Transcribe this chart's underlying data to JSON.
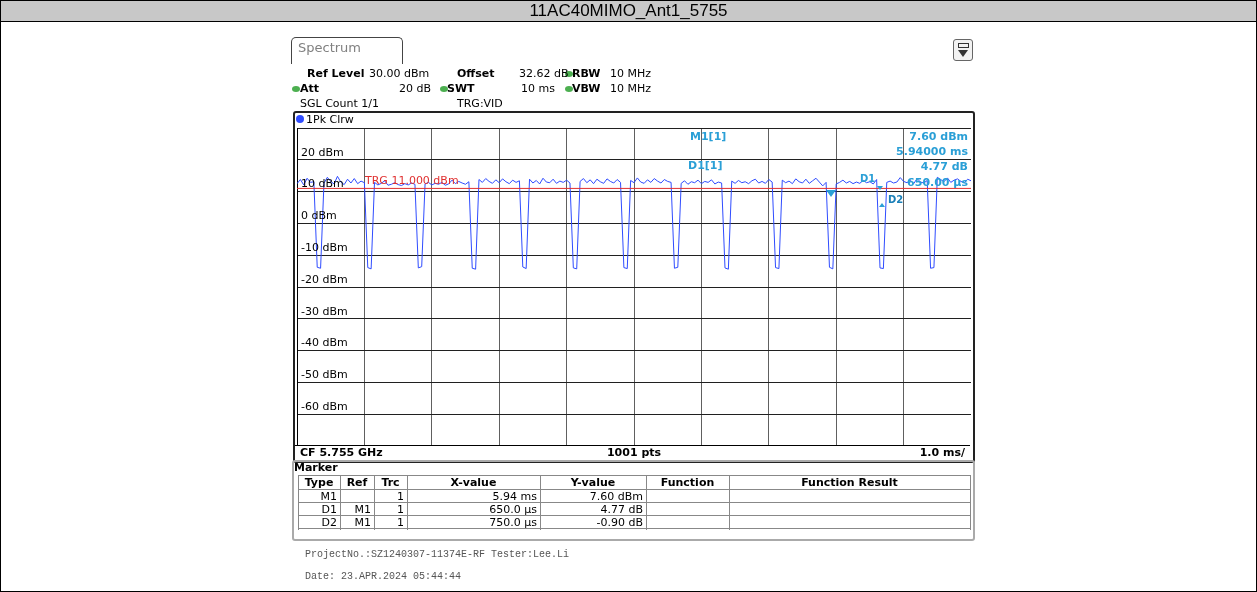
{
  "chart_data": {
    "type": "line",
    "title": "11AC40MIMO_Ant1_5755",
    "categories": [
      null,
      null,
      null,
      null,
      null,
      null,
      null,
      null,
      null,
      null,
      null,
      null,
      null,
      null,
      null,
      null,
      null,
      null,
      null,
      null,
      null,
      null,
      null,
      null,
      null,
      null,
      null,
      null,
      null,
      null,
      null,
      null,
      null,
      null,
      null,
      null,
      null,
      null,
      null,
      null,
      null,
      null,
      null,
      null,
      null,
      null,
      null,
      null,
      null,
      null,
      null,
      null,
      null,
      null,
      null,
      null,
      null,
      null,
      null,
      null,
      null,
      null,
      null,
      null,
      null,
      null,
      null,
      null,
      null,
      null,
      null,
      null,
      null,
      null,
      null,
      null,
      null,
      null,
      null,
      null,
      null,
      null,
      null,
      null,
      null,
      null,
      null,
      null,
      null,
      null,
      null,
      null,
      null,
      null,
      null,
      null,
      null,
      null,
      null,
      null,
      null,
      null,
      null,
      null,
      null,
      null,
      null,
      null,
      null,
      null,
      null,
      null,
      null,
      null,
      null,
      null,
      null,
      null,
      null,
      null,
      null,
      null,
      null,
      null,
      null,
      null,
      null,
      null,
      null,
      null,
      null,
      null,
      null,
      null,
      null,
      null,
      null,
      null,
      null,
      null,
      null,
      null,
      null,
      null,
      null,
      null,
      null,
      null,
      null,
      null,
      null,
      null,
      null,
      null,
      null,
      null,
      null,
      null,
      null,
      null,
      null,
      null,
      null,
      null,
      null,
      null,
      null,
      null,
      null,
      null,
      null,
      null,
      null,
      null,
      null,
      null,
      null,
      null,
      null,
      null,
      null,
      null,
      null,
      null,
      null,
      null,
      null,
      null,
      null,
      null,
      null,
      null,
      null,
      null,
      null,
      null,
      null,
      null,
      null,
      null,
      null
    ],
    "series": [
      {
        "name": "1Pk Clrw",
        "color": "#2f4cff",
        "values": [
          12.5,
          13.8,
          12.1,
          14.2,
          12.9,
          13.1,
          -13.8,
          -14.1,
          12.6,
          14.5,
          13.2,
          12.4,
          14.8,
          13.0,
          12.2,
          13.9,
          12.7,
          14.1,
          12.5,
          13.3,
          12.8,
          -13.9,
          -14.3,
          12.9,
          12.1,
          12.6,
          13.4,
          12.0,
          12.3,
          12.8,
          12.2,
          11.9,
          12.5,
          12.1,
          12.7,
          12.3,
          -14.0,
          -13.6,
          12.4,
          12.9,
          12.1,
          12.6,
          12.3,
          12.9,
          12.0,
          12.4,
          13.6,
          12.5,
          13.2,
          12.7,
          12.3,
          13.1,
          -14.1,
          -14.4,
          13.8,
          12.9,
          14.1,
          13.2,
          12.6,
          13.7,
          12.8,
          14.0,
          13.1,
          12.5,
          13.6,
          12.9,
          13.4,
          -13.7,
          -14.2,
          13.9,
          12.7,
          13.5,
          12.4,
          14.2,
          13.0,
          12.8,
          13.9,
          12.6,
          13.3,
          12.9,
          13.6,
          12.7,
          -14.0,
          -14.3,
          13.2,
          14.1,
          12.8,
          13.7,
          12.5,
          13.9,
          13.1,
          12.6,
          14.0,
          13.2,
          12.7,
          13.8,
          12.9,
          -13.9,
          -14.2,
          13.5,
          12.8,
          14.3,
          13.0,
          12.6,
          13.7,
          12.9,
          14.1,
          13.3,
          12.7,
          13.8,
          13.2,
          12.9,
          -14.1,
          -13.8,
          12.6,
          13.4,
          12.3,
          13.1,
          12.8,
          13.6,
          12.5,
          13.2,
          12.9,
          13.7,
          12.4,
          13.0,
          12.7,
          -14.0,
          -14.4,
          13.3,
          12.6,
          13.5,
          12.8,
          13.1,
          12.5,
          13.4,
          13.9,
          12.7,
          13.2,
          12.6,
          13.8,
          13.0,
          -13.9,
          -14.2,
          13.6,
          12.8,
          13.3,
          12.5,
          14.0,
          13.1,
          12.7,
          13.9,
          12.6,
          13.4,
          14.2,
          13.0,
          11.8,
          12.9,
          -13.8,
          -14.3,
          12.4,
          12.9,
          13.6,
          12.7,
          13.2,
          12.5,
          13.0,
          12.6,
          13.5,
          12.8,
          13.1,
          12.4,
          13.8,
          -14.0,
          -14.2,
          12.9,
          13.3,
          12.7,
          13.0,
          14.4,
          13.2,
          12.8,
          13.6,
          12.5,
          14.1,
          13.0,
          12.7,
          13.5,
          -14.1,
          -13.9,
          14.5,
          13.8,
          13.1,
          14.3,
          12.9,
          13.6,
          14.0,
          13.2,
          12.8,
          13.9,
          13.4
        ]
      }
    ],
    "ylim": [
      -70,
      30
    ],
    "yticks": [
      {
        "value": 30,
        "label": null
      },
      {
        "value": 20,
        "label": "20 dBm"
      },
      {
        "value": 10,
        "label": "10 dBm"
      },
      {
        "value": 0,
        "label": "0 dBm"
      },
      {
        "value": -10,
        "label": "-10 dBm"
      },
      {
        "value": -20,
        "label": "-20 dBm"
      },
      {
        "value": -30,
        "label": "-30 dBm"
      },
      {
        "value": -40,
        "label": "-40 dBm"
      },
      {
        "value": -50,
        "label": "-50 dBm"
      },
      {
        "value": -60,
        "label": "-60 dBm"
      },
      {
        "value": -70,
        "label": null
      }
    ],
    "grid": true,
    "legend": "top left",
    "marker": "none",
    "line_style": "solid",
    "ref_lines": [
      {
        "axis": "y",
        "value": 11,
        "label": "TRG 11.000 dBm",
        "color": "#e03030"
      }
    ],
    "annotations": [
      "Spectrum",
      "Ref Level",
      "30.00 dBm",
      "Offset",
      "32.62 dB",
      "RBW",
      "10 MHz",
      "Att",
      "20 dB",
      "SWT",
      "10 ms",
      "VBW",
      "10 MHz",
      "SGL Count 1/1",
      "TRG:VID",
      "M1[1]",
      "7.60 dBm",
      "5.94000 ms",
      "D1[1]",
      "4.77 dB",
      "650.00 µs",
      "D1",
      "D2",
      "CF 5.755 GHz",
      "1001 pts",
      "1.0 ms/",
      "Marker",
      "Type",
      "Ref",
      "Trc",
      "X-value",
      "Y-value",
      "Function",
      "Function Result",
      "M1",
      "1",
      "5.94 ms",
      "7.60 dBm",
      "D1",
      "M1",
      "1",
      "650.0 µs",
      "4.77 dB",
      "D2",
      "M1",
      "1",
      "750.0 µs",
      "-0.90 dB",
      "ProjectNo.:SZ1240307-11374E-RF  Tester:Lee.Li",
      "Date: 23.APR.2024  05:44:44"
    ]
  }
}
